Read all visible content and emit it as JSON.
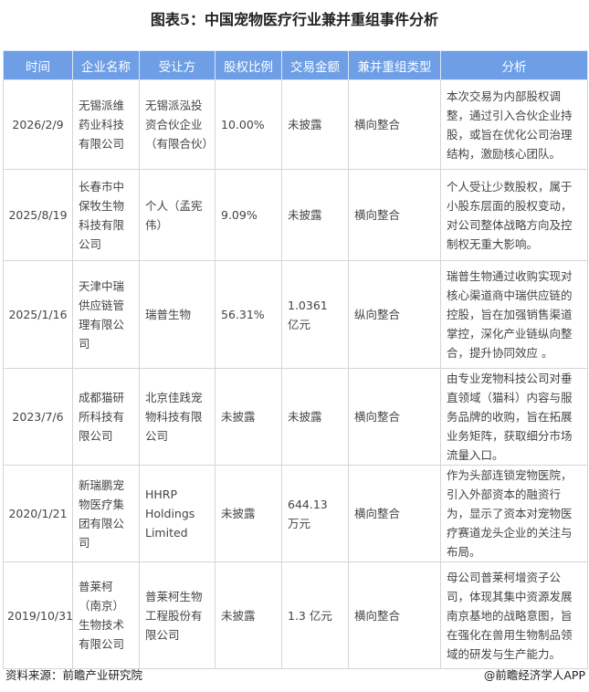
{
  "title": "图表5：中国宠物医疗行业兼并重组事件分析",
  "headers": [
    "时间",
    "企业名称",
    "受让方",
    "股权比例",
    "交易金额",
    "兼并重组类型",
    "分析"
  ],
  "rows": [
    {
      "date": "2026/2/9",
      "company": "无锡派维药业科技有限公司",
      "buyer": "无锡派泓投资合伙企业（有限合伙）",
      "ratio": "10.00%",
      "amount": "未披露",
      "type": "横向整合",
      "analysis": "本次交易为内部股权调整，通过引入合伙企业持股，或旨在优化公司治理结构，激励核心团队。"
    },
    {
      "date": "2025/8/19",
      "company": "长春市中保牧生物科技有限公司",
      "buyer": "个人（孟宪伟）",
      "ratio": "9.09%",
      "amount": "未披露",
      "type": "横向整合",
      "analysis": "个人受让少数股权，属于小股东层面的股权变动，对公司整体战略方向及控制权无重大影响。"
    },
    {
      "date": "2025/1/16",
      "company": "天津中瑞供应链管理有限公司",
      "buyer": "瑞普生物",
      "ratio": "56.31%",
      "amount": "1.0361 亿元",
      "type": "纵向整合",
      "analysis": "瑞普生物通过收购实现对核心渠道商中瑞供应链的控股，旨在加强销售渠道掌控，深化产业链纵向整合，提升协同效应 。"
    },
    {
      "date": "2023/7/6",
      "company": "成都猫研所科技有限公司",
      "buyer": "北京佳践宠物科技有限公司",
      "ratio": "未披露",
      "amount": "未披露",
      "type": "横向整合",
      "analysis": "由专业宠物科技公司对垂直领域（猫科）内容与服务品牌的收购，旨在拓展业务矩阵，获取细分市场流量入口。"
    },
    {
      "date": "2020/1/21",
      "company": "新瑞鹏宠物医疗集团有限公司",
      "buyer": "HHRP Holdings Limited",
      "ratio": "未披露",
      "amount": "644.13 万元",
      "type": "横向整合",
      "analysis": "作为头部连锁宠物医院，引入外部资本的融资行为，显示了资本对宠物医疗赛道龙头企业的关注与布局。"
    },
    {
      "date": "2019/10/31",
      "company": "普莱柯（南京）生物技术有限公司",
      "buyer": "普莱柯生物工程股份有限公司",
      "ratio": "未披露",
      "amount": "1.3 亿元",
      "type": "横向整合",
      "analysis": "母公司普莱柯增资子公司，体现其集中资源发展南京基地的战略意图，旨在强化在兽用生物制品领域的研发与生产能力。"
    }
  ],
  "footer": {
    "source": "资料来源：前瞻产业研究院",
    "credit": "@前瞻经济学人APP"
  }
}
